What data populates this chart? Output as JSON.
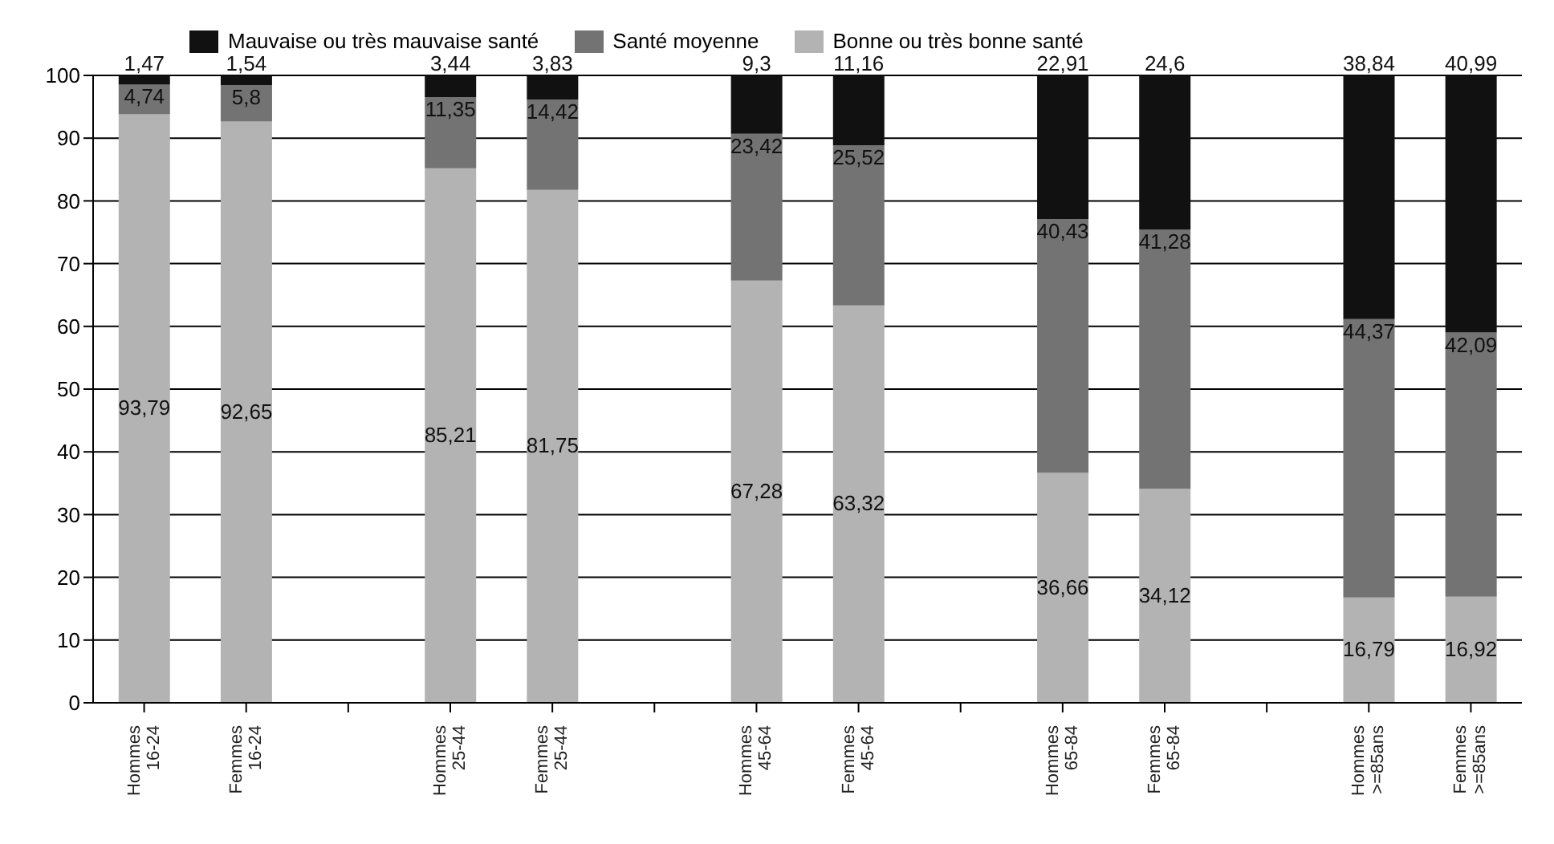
{
  "chart_data": {
    "type": "bar",
    "stacked": true,
    "categories": [
      "Hommes 16-24",
      "Femmes 16-24",
      null,
      "Hommes 25-44",
      "Femmes 25-44",
      null,
      "Hommes 45-64",
      "Femmes 45-64",
      null,
      "Hommes 65-84",
      "Femmes 65-84",
      null,
      "Hommes >=85ans",
      "Femmes >=85ans"
    ],
    "series": [
      {
        "name": "Bonne ou très bonne santé",
        "color": "#b3b3b3",
        "values": [
          93.79,
          92.65,
          null,
          85.21,
          81.75,
          null,
          67.28,
          63.32,
          null,
          36.66,
          34.12,
          null,
          16.79,
          16.92
        ],
        "value_labels": [
          "93,79",
          "92,65",
          null,
          "85,21",
          "81,75",
          null,
          "67,28",
          "63,32",
          null,
          "36,66",
          "34,12",
          null,
          "16,79",
          "16,92"
        ]
      },
      {
        "name": "Santé moyenne",
        "color": "#737373",
        "values": [
          4.74,
          5.8,
          null,
          11.35,
          14.42,
          null,
          23.42,
          25.52,
          null,
          40.43,
          41.28,
          null,
          44.37,
          42.09
        ],
        "value_labels": [
          "4,74",
          "5,8",
          null,
          "11,35",
          "14,42",
          null,
          "23,42",
          "25,52",
          null,
          "40,43",
          "41,28",
          null,
          "44,37",
          "42,09"
        ]
      },
      {
        "name": "Mauvaise ou très mauvaise santé",
        "color": "#111111",
        "values": [
          1.47,
          1.54,
          null,
          3.44,
          3.83,
          null,
          9.3,
          11.16,
          null,
          22.91,
          24.6,
          null,
          38.84,
          40.99
        ],
        "value_labels": [
          "1,47",
          "1,54",
          null,
          "3,44",
          "3,83",
          null,
          "9,3",
          "11,16",
          null,
          "22,91",
          "24,6",
          null,
          "38,84",
          "40,99"
        ]
      }
    ],
    "ylim": [
      0,
      100
    ],
    "yticks": [
      0,
      10,
      20,
      30,
      40,
      50,
      60,
      70,
      80,
      90,
      100
    ],
    "grid": "y",
    "legend": "top"
  }
}
